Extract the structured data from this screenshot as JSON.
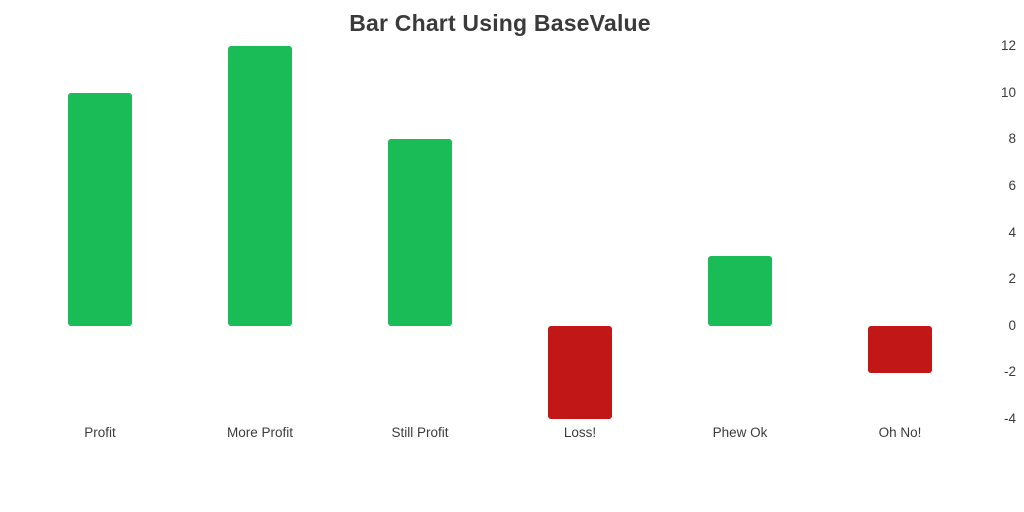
{
  "title": "Bar Chart Using BaseValue",
  "colors": {
    "positive_bar": "#1abc58",
    "negative_bar": "#c11717",
    "title_text": "#3a3a3a",
    "axis_text": "#3c3c3c",
    "background": "#ffffff"
  },
  "chart_data": {
    "type": "bar",
    "title": "Bar Chart Using BaseValue",
    "categories": [
      "Profit",
      "More Profit",
      "Still Profit",
      "Loss!",
      "Phew Ok",
      "Oh No!"
    ],
    "values": [
      10,
      12,
      8,
      -4,
      3,
      -2
    ],
    "base_value": 0,
    "xlabel": "",
    "ylabel": "",
    "ylim": [
      -4,
      12
    ],
    "yticks": [
      12,
      10,
      8,
      6,
      4,
      2,
      0,
      -2,
      -4
    ],
    "y_axis_position": "right",
    "grid": false,
    "legend": false,
    "positive_color": "#1abc58",
    "negative_color": "#c11717"
  }
}
